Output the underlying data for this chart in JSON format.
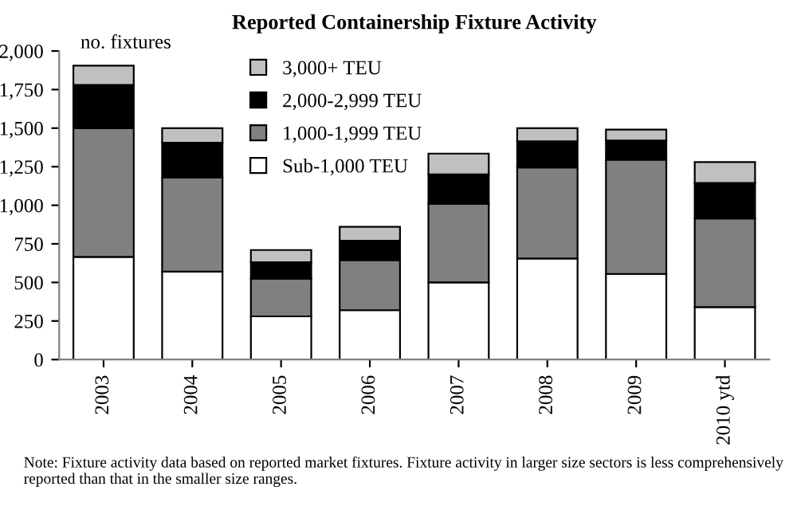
{
  "chart_data": {
    "type": "bar",
    "title": "Reported Containership Fixture Activity",
    "ylabel": "no. fixtures",
    "categories": [
      "2003",
      "2004",
      "2005",
      "2006",
      "2007",
      "2008",
      "2009",
      "2010 ytd"
    ],
    "stacked": true,
    "series": [
      {
        "name": "Sub-1,000 TEU",
        "color": "#ffffff",
        "values": [
          665,
          570,
          280,
          320,
          500,
          655,
          555,
          340
        ]
      },
      {
        "name": "1,000-1,999 TEU",
        "color": "#808080",
        "values": [
          835,
          610,
          245,
          325,
          510,
          590,
          740,
          575
        ]
      },
      {
        "name": "2,000-2,999 TEU",
        "color": "#000000",
        "values": [
          280,
          225,
          105,
          125,
          190,
          170,
          125,
          230
        ]
      },
      {
        "name": "3,000+ TEU",
        "color": "#c0c0c0",
        "values": [
          125,
          95,
          80,
          90,
          135,
          85,
          70,
          135
        ]
      }
    ],
    "ylim": [
      0,
      2000
    ],
    "yticks": [
      0,
      {
        "value": 250,
        "label": "250"
      },
      {
        "value": 500,
        "label": "500"
      },
      {
        "value": 750,
        "label": "750"
      },
      {
        "value": 1000,
        "label": "1,000"
      },
      {
        "value": 1250,
        "label": "1,250"
      },
      {
        "value": 1500,
        "label": "1,500"
      },
      {
        "value": 1750,
        "label": "1,750"
      },
      {
        "value": 2000,
        "label": "2,000"
      }
    ],
    "grid": false,
    "legend": "top",
    "annotations": [
      "Note: Fixture activity data based on reported market fixtures. Fixture activity in larger size sectors is less comprehensively reported than that in the smaller size ranges."
    ]
  }
}
